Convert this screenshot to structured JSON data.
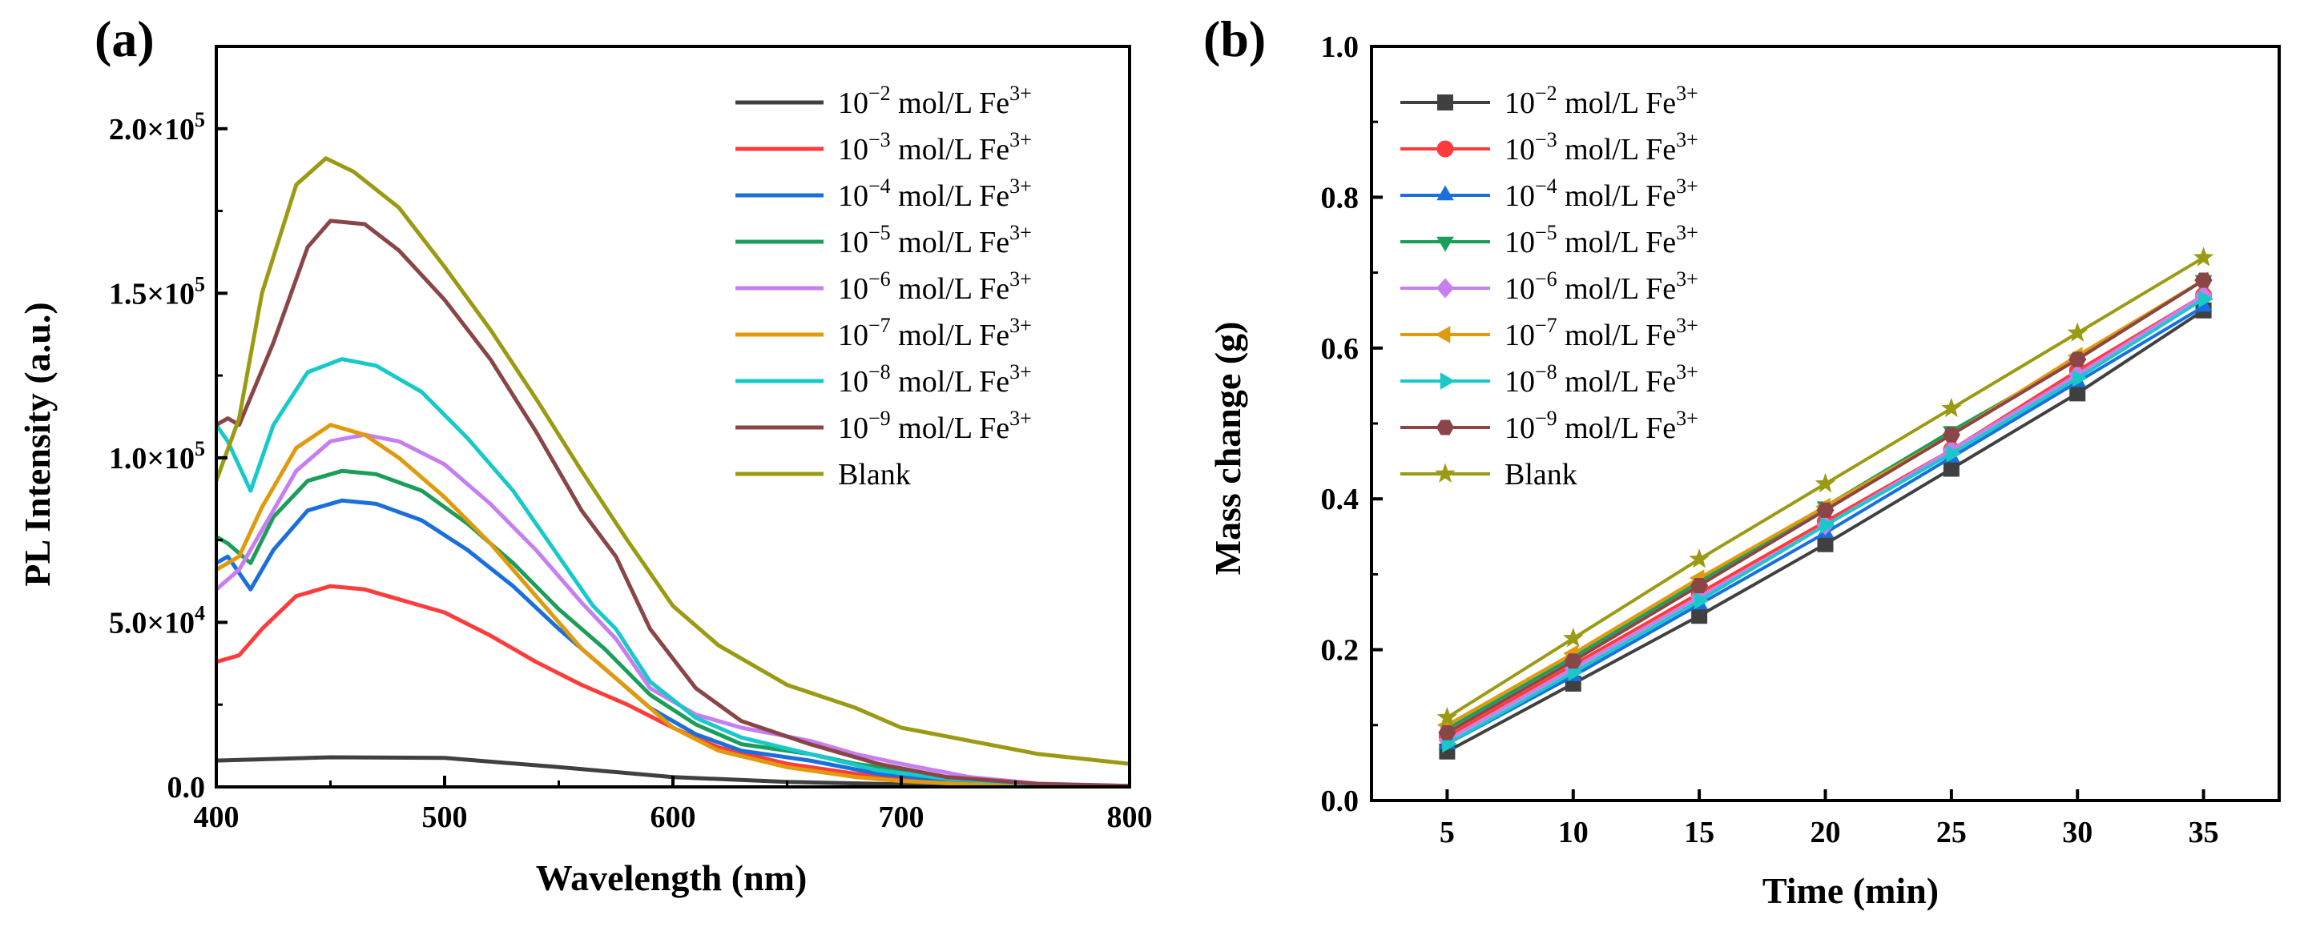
{
  "chart_data": [
    {
      "panel": "(a)",
      "type": "line",
      "xlabel": "Wavelength (nm)",
      "ylabel": "PL Intensity (a.u.)",
      "xlim": [
        400,
        800
      ],
      "ylim": [
        0,
        225000
      ],
      "x_ticks": [
        400,
        500,
        600,
        700,
        800
      ],
      "y_ticks": [
        {
          "value": 0,
          "base": "0.0",
          "exp": ""
        },
        {
          "value": 50000,
          "base": "5.0×10",
          "exp": "4"
        },
        {
          "value": 100000,
          "base": "1.0×10",
          "exp": "5"
        },
        {
          "value": 150000,
          "base": "1.5×10",
          "exp": "5"
        },
        {
          "value": 200000,
          "base": "2.0×10",
          "exp": "5"
        }
      ],
      "series": [
        {
          "name": "10⁻² mol/L Fe³⁺",
          "base": "10",
          "exp": "−2",
          "unit": " mol/L Fe",
          "ion": "3+",
          "color": "#404040",
          "x": [
            400,
            450,
            500,
            550,
            600,
            650,
            700,
            750,
            800
          ],
          "y": [
            8000,
            9000,
            8800,
            6000,
            3000,
            1500,
            800,
            400,
            200
          ]
        },
        {
          "name": "10⁻³ mol/L Fe³⁺",
          "base": "10",
          "exp": "−3",
          "unit": " mol/L Fe",
          "ion": "3+",
          "color": "#ff3b3b",
          "x": [
            400,
            410,
            420,
            435,
            450,
            465,
            480,
            500,
            520,
            540,
            560,
            580,
            600,
            620,
            650,
            680,
            700,
            750,
            800
          ],
          "y": [
            38000,
            40000,
            48000,
            58000,
            61000,
            60000,
            57000,
            53000,
            46000,
            38000,
            31000,
            25000,
            18000,
            12000,
            7000,
            4000,
            2500,
            800,
            200
          ]
        },
        {
          "name": "10⁻⁴ mol/L Fe³⁺",
          "base": "10",
          "exp": "−4",
          "unit": " mol/L Fe",
          "ion": "3+",
          "color": "#1a6fdc",
          "x": [
            400,
            405,
            415,
            425,
            440,
            455,
            470,
            490,
            510,
            530,
            550,
            570,
            590,
            610,
            630,
            660,
            690,
            720,
            760,
            800
          ],
          "y": [
            68000,
            70000,
            60000,
            72000,
            84000,
            87000,
            86000,
            81000,
            72000,
            61000,
            48000,
            36000,
            24000,
            16000,
            11000,
            8000,
            4000,
            2000,
            600,
            200
          ]
        },
        {
          "name": "10⁻⁵ mol/L Fe³⁺",
          "base": "10",
          "exp": "−5",
          "unit": " mol/L Fe",
          "ion": "3+",
          "color": "#1a9e5a",
          "x": [
            400,
            405,
            415,
            425,
            440,
            455,
            470,
            490,
            510,
            530,
            550,
            570,
            590,
            610,
            630,
            660,
            680,
            700,
            730,
            760,
            800
          ],
          "y": [
            76000,
            74000,
            68000,
            82000,
            93000,
            96000,
            95000,
            90000,
            80000,
            68000,
            54000,
            42000,
            28000,
            19000,
            13000,
            10000,
            7000,
            5000,
            2000,
            600,
            200
          ]
        },
        {
          "name": "10⁻⁶ mol/L Fe³⁺",
          "base": "10",
          "exp": "−6",
          "unit": " mol/L Fe",
          "ion": "3+",
          "color": "#c77ef0",
          "x": [
            400,
            410,
            420,
            435,
            450,
            465,
            480,
            500,
            520,
            540,
            560,
            575,
            590,
            610,
            630,
            660,
            680,
            700,
            730,
            760,
            800
          ],
          "y": [
            60000,
            66000,
            78000,
            96000,
            105000,
            107000,
            105000,
            98000,
            86000,
            72000,
            56000,
            45000,
            30000,
            22000,
            18000,
            14000,
            10000,
            7000,
            3000,
            1000,
            300
          ]
        },
        {
          "name": "10⁻⁷ mol/L Fe³⁺",
          "base": "10",
          "exp": "−7",
          "unit": " mol/L Fe",
          "ion": "3+",
          "color": "#e09a0c",
          "x": [
            400,
            410,
            420,
            435,
            450,
            465,
            480,
            500,
            520,
            540,
            560,
            580,
            600,
            620,
            650,
            680,
            700,
            730,
            760,
            800
          ],
          "y": [
            66000,
            70000,
            85000,
            103000,
            110000,
            107000,
            100000,
            88000,
            74000,
            58000,
            42000,
            30000,
            18000,
            11000,
            6000,
            3000,
            1800,
            800,
            300,
            100
          ]
        },
        {
          "name": "10⁻⁸ mol/L Fe³⁺",
          "base": "10",
          "exp": "−8",
          "unit": " mol/L Fe",
          "ion": "3+",
          "color": "#17c9c9",
          "x": [
            400,
            405,
            415,
            425,
            440,
            455,
            470,
            490,
            510,
            530,
            550,
            565,
            575,
            590,
            610,
            630,
            660,
            690,
            720,
            760,
            800
          ],
          "y": [
            110000,
            105000,
            90000,
            110000,
            126000,
            130000,
            128000,
            120000,
            106000,
            90000,
            70000,
            55000,
            48000,
            32000,
            21000,
            15000,
            10000,
            5000,
            2500,
            800,
            200
          ]
        },
        {
          "name": "10⁻⁹ mol/L Fe³⁺",
          "base": "10",
          "exp": "−9",
          "unit": " mol/L Fe",
          "ion": "3+",
          "color": "#8a4646",
          "x": [
            400,
            405,
            410,
            425,
            440,
            450,
            465,
            480,
            500,
            520,
            540,
            560,
            575,
            590,
            610,
            630,
            660,
            690,
            720,
            760,
            800
          ],
          "y": [
            110000,
            112000,
            110000,
            135000,
            164000,
            172000,
            171000,
            163000,
            148000,
            130000,
            108000,
            84000,
            70000,
            48000,
            30000,
            20000,
            13000,
            7000,
            3000,
            900,
            300
          ]
        },
        {
          "name": "Blank",
          "base": "Blank",
          "exp": "",
          "unit": "",
          "ion": "",
          "color": "#9b9b13",
          "x": [
            400,
            410,
            420,
            435,
            448,
            460,
            480,
            500,
            520,
            540,
            560,
            580,
            600,
            620,
            650,
            680,
            700,
            730,
            760,
            800
          ],
          "y": [
            93000,
            112000,
            150000,
            183000,
            191000,
            187000,
            176000,
            158000,
            139000,
            118000,
            96000,
            75000,
            55000,
            43000,
            31000,
            24000,
            18000,
            14000,
            10000,
            7000
          ]
        }
      ]
    },
    {
      "panel": "(b)",
      "type": "line",
      "xlabel": "Time (min)",
      "ylabel": "Mass change (g)",
      "xlim": [
        2,
        38
      ],
      "ylim": [
        0.0,
        1.0
      ],
      "x_ticks": [
        5,
        10,
        15,
        20,
        25,
        30,
        35
      ],
      "y_ticks": [
        {
          "value": 0.0,
          "label": "0.0"
        },
        {
          "value": 0.2,
          "label": "0.2"
        },
        {
          "value": 0.4,
          "label": "0.4"
        },
        {
          "value": 0.6,
          "label": "0.6"
        },
        {
          "value": 0.8,
          "label": "0.8"
        },
        {
          "value": 1.0,
          "label": "1.0"
        }
      ],
      "x": [
        5,
        10,
        15,
        20,
        25,
        30,
        35
      ],
      "series": [
        {
          "name": "10⁻² mol/L Fe³⁺",
          "base": "10",
          "exp": "−2",
          "unit": " mol/L Fe",
          "ion": "3+",
          "color": "#404040",
          "marker": "square",
          "values": [
            0.065,
            0.155,
            0.245,
            0.34,
            0.44,
            0.54,
            0.65
          ]
        },
        {
          "name": "10⁻³ mol/L Fe³⁺",
          "base": "10",
          "exp": "−3",
          "unit": " mol/L Fe",
          "ion": "3+",
          "color": "#ff3b3b",
          "marker": "circle",
          "values": [
            0.085,
            0.18,
            0.275,
            0.37,
            0.465,
            0.57,
            0.67
          ]
        },
        {
          "name": "10⁻⁴ mol/L Fe³⁺",
          "base": "10",
          "exp": "−4",
          "unit": " mol/L Fe",
          "ion": "3+",
          "color": "#1a6fdc",
          "marker": "triangle-up",
          "values": [
            0.075,
            0.165,
            0.26,
            0.355,
            0.455,
            0.555,
            0.655
          ]
        },
        {
          "name": "10⁻⁵ mol/L Fe³⁺",
          "base": "10",
          "exp": "−5",
          "unit": " mol/L Fe",
          "ion": "3+",
          "color": "#1a9e5a",
          "marker": "triangle-down",
          "values": [
            0.095,
            0.19,
            0.29,
            0.39,
            0.49,
            0.585,
            0.69
          ]
        },
        {
          "name": "10⁻⁶ mol/L Fe³⁺",
          "base": "10",
          "exp": "−6",
          "unit": " mol/L Fe",
          "ion": "3+",
          "color": "#c77ef0",
          "marker": "diamond",
          "values": [
            0.08,
            0.175,
            0.27,
            0.365,
            0.465,
            0.565,
            0.67
          ]
        },
        {
          "name": "10⁻⁷ mol/L Fe³⁺",
          "base": "10",
          "exp": "−7",
          "unit": " mol/L Fe",
          "ion": "3+",
          "color": "#e09a0c",
          "marker": "triangle-left",
          "values": [
            0.1,
            0.195,
            0.295,
            0.39,
            0.485,
            0.59,
            0.69
          ]
        },
        {
          "name": "10⁻⁸ mol/L Fe³⁺",
          "base": "10",
          "exp": "−8",
          "unit": " mol/L Fe",
          "ion": "3+",
          "color": "#17c9c9",
          "marker": "triangle-right",
          "values": [
            0.075,
            0.17,
            0.265,
            0.365,
            0.46,
            0.56,
            0.665
          ]
        },
        {
          "name": "10⁻⁹ mol/L Fe³⁺",
          "base": "10",
          "exp": "−9",
          "unit": " mol/L Fe",
          "ion": "3+",
          "color": "#8a4646",
          "marker": "hexagon",
          "values": [
            0.09,
            0.185,
            0.285,
            0.385,
            0.485,
            0.585,
            0.69
          ]
        },
        {
          "name": "Blank",
          "base": "Blank",
          "exp": "",
          "unit": "",
          "ion": "",
          "color": "#9b9b13",
          "marker": "star",
          "values": [
            0.11,
            0.215,
            0.32,
            0.42,
            0.52,
            0.62,
            0.72
          ]
        }
      ]
    }
  ]
}
